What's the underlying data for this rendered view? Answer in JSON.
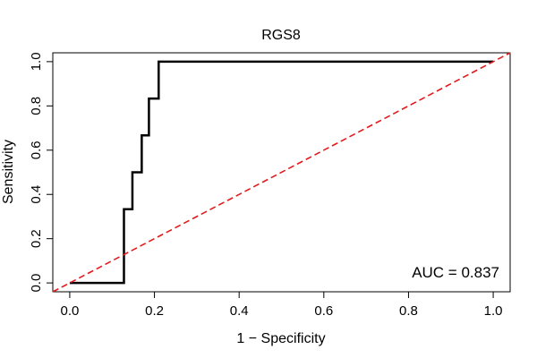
{
  "chart_data": {
    "type": "line",
    "title": "RGS8",
    "xlabel": "1 − Specificity",
    "ylabel": "Sensitivity",
    "xlim": [
      -0.04,
      1.04
    ],
    "ylim": [
      -0.04,
      1.04
    ],
    "xticks": [
      0.0,
      0.2,
      0.4,
      0.6,
      0.8,
      1.0
    ],
    "yticks": [
      0.0,
      0.2,
      0.4,
      0.6,
      0.8,
      1.0
    ],
    "xtick_labels": [
      "0.0",
      "0.2",
      "0.4",
      "0.6",
      "0.8",
      "1.0"
    ],
    "ytick_labels": [
      "0.0",
      "0.2",
      "0.4",
      "0.6",
      "0.8",
      "1.0"
    ],
    "grid": false,
    "annotation": "AUC = 0.837",
    "series": [
      {
        "style": "solid",
        "color": "#000000",
        "x": [
          0.0,
          0.128,
          0.128,
          0.128,
          0.148,
          0.148,
          0.17,
          0.17,
          0.187,
          0.187,
          0.21,
          0.21,
          1.0
        ],
        "y": [
          0.0,
          0.0,
          0.167,
          0.333,
          0.333,
          0.5,
          0.5,
          0.667,
          0.667,
          0.833,
          0.833,
          1.0,
          1.0
        ]
      },
      {
        "style": "dashed",
        "color": "#e31a1c",
        "x": [
          -0.04,
          1.04
        ],
        "y": [
          -0.04,
          1.04
        ]
      }
    ]
  }
}
